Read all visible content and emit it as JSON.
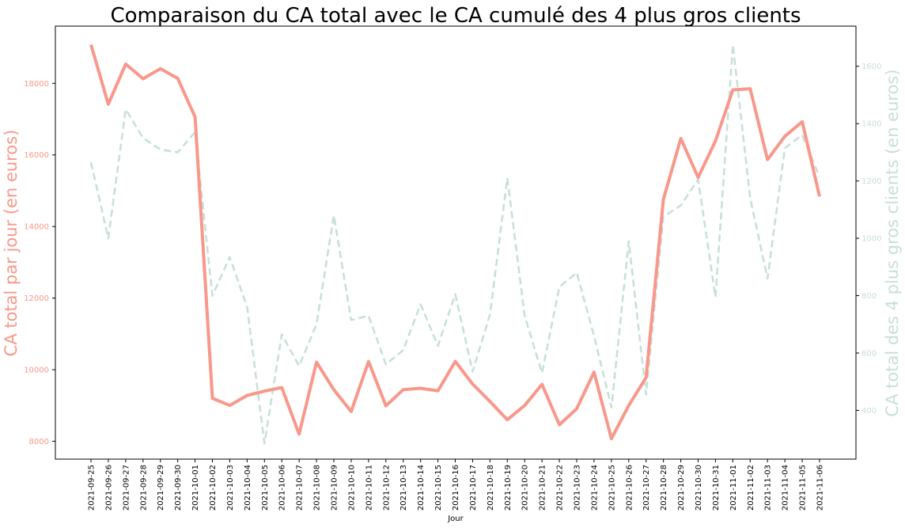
{
  "colors": {
    "left": "#f8978a",
    "right": "#c6dfd9",
    "axis": "#000000"
  },
  "chart_data": {
    "type": "line",
    "title": "Comparaison du CA total avec le CA cumulé des 4 plus gros clients",
    "xlabel": "Jour",
    "ylabel_left": "CA total par jour (en euros)",
    "ylabel_right": "CA total des 4 plus gros clients (en euros)",
    "ylim_left": [
      7500,
      19600
    ],
    "ylim_right": [
      230,
      1740
    ],
    "yticks_left": [
      8000,
      10000,
      12000,
      14000,
      16000,
      18000
    ],
    "yticks_right": [
      400,
      600,
      800,
      1000,
      1200,
      1400,
      1600
    ],
    "grid": false,
    "x": [
      "2021-09-25",
      "2021-09-26",
      "2021-09-27",
      "2021-09-28",
      "2021-09-29",
      "2021-09-30",
      "2021-10-01",
      "2021-10-02",
      "2021-10-03",
      "2021-10-04",
      "2021-10-05",
      "2021-10-06",
      "2021-10-07",
      "2021-10-08",
      "2021-10-09",
      "2021-10-10",
      "2021-10-11",
      "2021-10-12",
      "2021-10-13",
      "2021-10-14",
      "2021-10-15",
      "2021-10-16",
      "2021-10-17",
      "2021-10-18",
      "2021-10-19",
      "2021-10-20",
      "2021-10-21",
      "2021-10-22",
      "2021-10-23",
      "2021-10-24",
      "2021-10-25",
      "2021-10-26",
      "2021-10-27",
      "2021-10-28",
      "2021-10-29",
      "2021-10-30",
      "2021-10-31",
      "2021-11-01",
      "2021-11-02",
      "2021-11-03",
      "2021-11-04",
      "2021-11-05",
      "2021-11-06"
    ],
    "series": [
      {
        "axis": "left",
        "style": "solid",
        "values": [
          19080,
          17420,
          18540,
          18130,
          18410,
          18140,
          17060,
          9200,
          9000,
          9280,
          9400,
          9500,
          8200,
          10210,
          9440,
          8830,
          10230,
          8990,
          9440,
          9480,
          9410,
          10230,
          9600,
          9110,
          8600,
          9000,
          9590,
          8460,
          8910,
          9930,
          8070,
          9000,
          9780,
          14760,
          16460,
          15370,
          16390,
          17820,
          17850,
          15870,
          16520,
          16930,
          14840
        ]
      },
      {
        "axis": "right",
        "style": "dashed",
        "values": [
          1265,
          1000,
          1450,
          1350,
          1310,
          1300,
          1370,
          800,
          935,
          760,
          285,
          665,
          555,
          700,
          1080,
          715,
          730,
          560,
          610,
          770,
          625,
          805,
          535,
          735,
          1210,
          730,
          530,
          830,
          880,
          660,
          410,
          990,
          455,
          1075,
          1115,
          1205,
          795,
          1675,
          1140,
          860,
          1315,
          1360,
          1215
        ]
      }
    ]
  }
}
